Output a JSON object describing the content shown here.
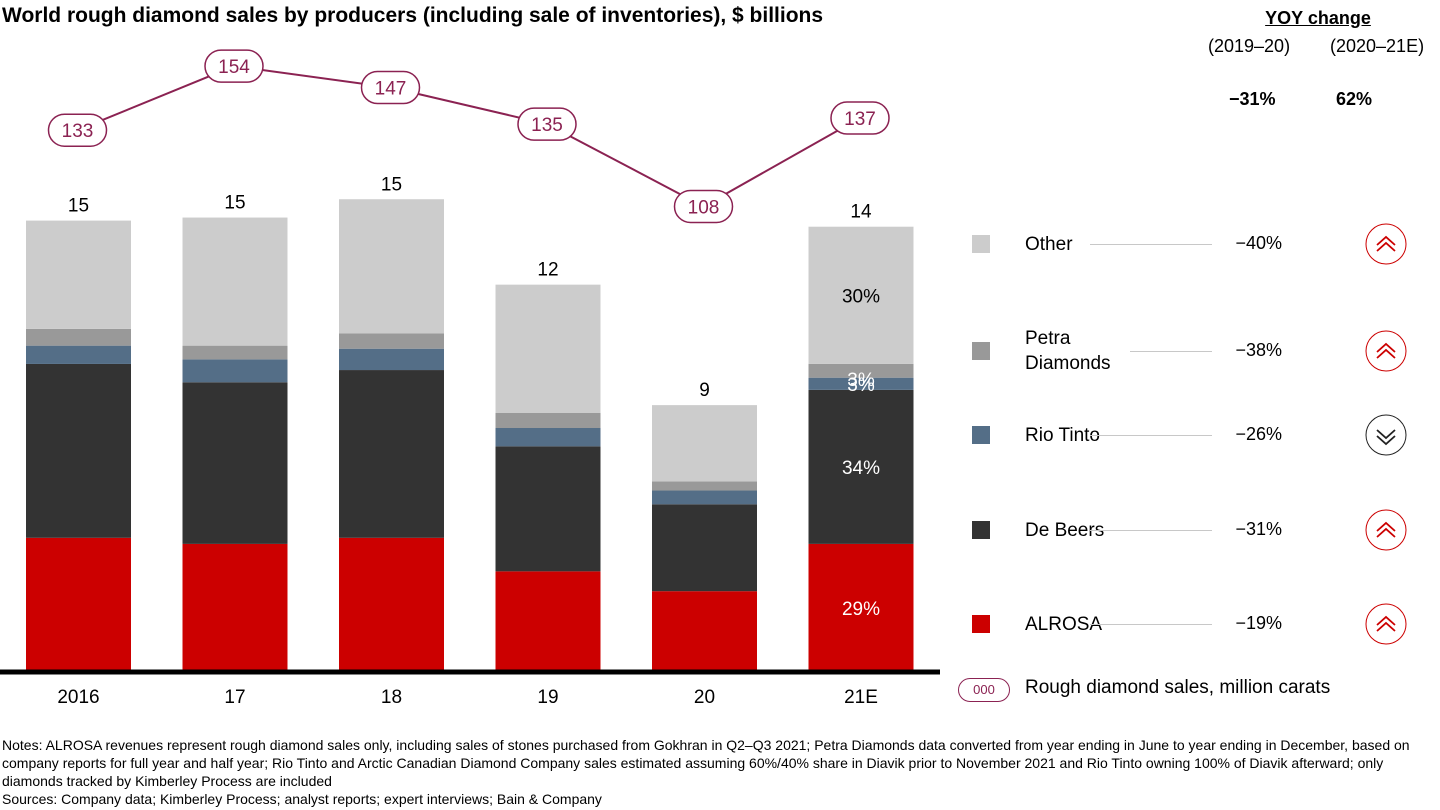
{
  "title": "World rough diamond sales by producers (including sale of inventories), $ billions",
  "chart_data": {
    "type": "bar",
    "stacked": true,
    "categories": [
      "2016",
      "17",
      "18",
      "19",
      "20",
      "21E"
    ],
    "series": [
      {
        "name": "ALROSA",
        "color": "#cc0000",
        "values": [
          4.4,
          4.2,
          4.4,
          3.3,
          2.65,
          4.2
        ]
      },
      {
        "name": "De Beers",
        "color": "#333333",
        "values": [
          5.7,
          5.3,
          5.5,
          4.1,
          2.85,
          5.05
        ]
      },
      {
        "name": "Rio Tinto",
        "color": "#546e87",
        "values": [
          0.6,
          0.75,
          0.7,
          0.6,
          0.45,
          0.4
        ]
      },
      {
        "name": "Petra Diamonds",
        "color": "#999999",
        "values": [
          0.55,
          0.45,
          0.5,
          0.5,
          0.3,
          0.45
        ]
      },
      {
        "name": "Other",
        "color": "#cccccc",
        "values": [
          3.55,
          4.2,
          4.4,
          4.2,
          2.5,
          4.5
        ]
      }
    ],
    "totals": [
      "15",
      "15",
      "15",
      "12",
      "9",
      "14"
    ],
    "segment_labels": {
      "category": "21E",
      "Other": "30%",
      "Petra Diamonds": "3%",
      "Rio Tinto": "3%",
      "De Beers": "34%",
      "ALROSA": "29%"
    },
    "line": {
      "name": "Rough diamond sales, million carats",
      "values": [
        133,
        154,
        147,
        135,
        108,
        137
      ]
    }
  },
  "yoy": {
    "header": "YOY change",
    "periods": [
      "(2019–20)",
      "(2020–21E)"
    ],
    "totals": [
      "−31%",
      "62%"
    ],
    "rows": [
      {
        "label": "Other",
        "change": "−40%",
        "trend": "up",
        "icon": "double-chevron-up-icon"
      },
      {
        "label": "Petra\nDiamonds",
        "change": "−38%",
        "trend": "up",
        "icon": "double-chevron-up-icon"
      },
      {
        "label": "Rio Tinto",
        "change": "−26%",
        "trend": "down",
        "icon": "double-chevron-down-icon"
      },
      {
        "label": "De Beers",
        "change": "−31%",
        "trend": "up",
        "icon": "double-chevron-up-icon"
      },
      {
        "label": "ALROSA",
        "change": "−19%",
        "trend": "up",
        "icon": "double-chevron-up-icon"
      }
    ]
  },
  "line_legend": {
    "marker_text": "000",
    "label": "Rough diamond sales, million carats"
  },
  "notes": "Notes: ALROSA revenues represent rough diamond sales only, including sales of stones purchased from Gokhran in Q2–Q3 2021; Petra Diamonds data converted from year ending in June to year ending in December, based on company reports for full year and half year; Rio Tinto and Arctic Canadian Diamond Company sales estimated assuming 60%/40% share in Diavik prior to November 2021 and Rio Tinto owning 100% of Diavik afterward; only diamonds tracked by Kimberley Process are included",
  "sources": "Sources: Company data; Kimberley Process; analyst reports; expert interviews; Bain & Company",
  "colors": {
    "accent": "#8b2252",
    "up_arrow": "#cc0000",
    "down_arrow": "#222222"
  }
}
